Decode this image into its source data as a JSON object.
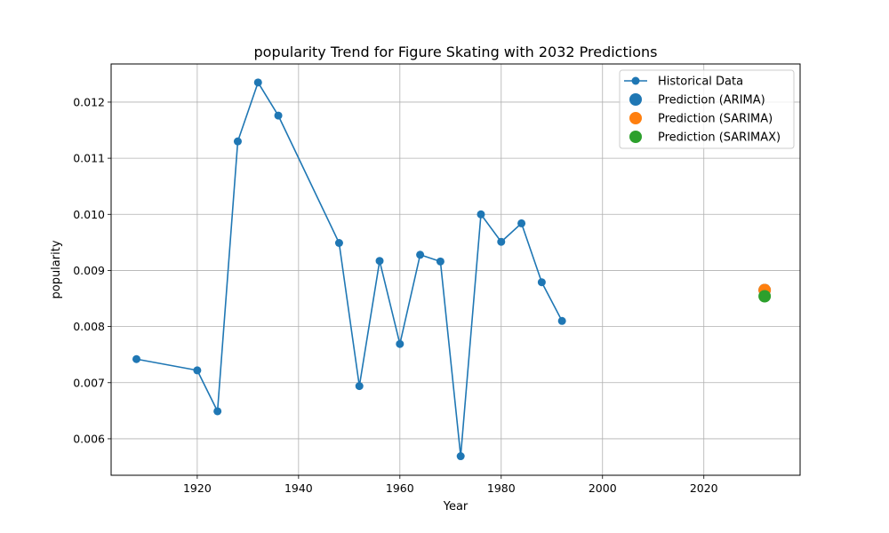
{
  "chart_data": {
    "type": "line",
    "title": "popularity Trend for Figure Skating with 2032 Predictions",
    "xlabel": "Year",
    "ylabel": "popularity",
    "xlim": [
      1903,
      2039
    ],
    "ylim": [
      0.00535,
      0.01268
    ],
    "xticks": [
      1920,
      1940,
      1960,
      1980,
      2000,
      2020
    ],
    "yticks": [
      0.006,
      0.007,
      0.008,
      0.009,
      0.01,
      0.011,
      0.012
    ],
    "ytick_labels": [
      "0.006",
      "0.007",
      "0.008",
      "0.009",
      "0.010",
      "0.011",
      "0.012"
    ],
    "grid": true,
    "legend_position": "top-right",
    "series": [
      {
        "name": "Historical Data",
        "kind": "line-marker",
        "color": "#1f77b4",
        "x": [
          1908,
          1920,
          1924,
          1928,
          1932,
          1936,
          1948,
          1952,
          1956,
          1960,
          1964,
          1968,
          1972,
          1976,
          1980,
          1984,
          1988,
          1992
        ],
        "y": [
          0.00742,
          0.00722,
          0.00649,
          0.0113,
          0.01235,
          0.01176,
          0.00949,
          0.00694,
          0.00917,
          0.00769,
          0.00928,
          0.00916,
          0.00569,
          0.01,
          0.00951,
          0.00984,
          0.00879,
          0.0081
        ]
      },
      {
        "name": "Prediction (ARIMA)",
        "kind": "point",
        "color": "#1f77b4",
        "x": [
          2032
        ],
        "y": [
          0.00865
        ]
      },
      {
        "name": "Prediction (SARIMA)",
        "kind": "point",
        "color": "#ff7f0e",
        "x": [
          2032
        ],
        "y": [
          0.00865
        ]
      },
      {
        "name": "Prediction (SARIMAX)",
        "kind": "point",
        "color": "#2ca02c",
        "x": [
          2032
        ],
        "y": [
          0.00854
        ]
      }
    ]
  }
}
